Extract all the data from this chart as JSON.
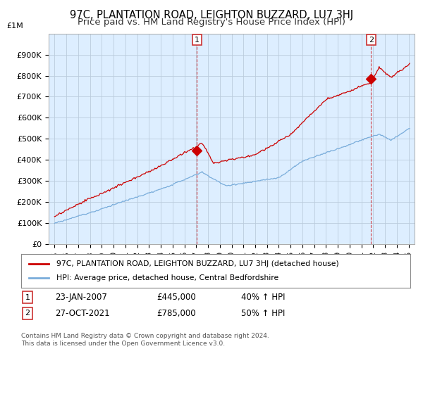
{
  "title": "97C, PLANTATION ROAD, LEIGHTON BUZZARD, LU7 3HJ",
  "subtitle": "Price paid vs. HM Land Registry's House Price Index (HPI)",
  "title_fontsize": 10.5,
  "subtitle_fontsize": 9.5,
  "red_label": "97C, PLANTATION ROAD, LEIGHTON BUZZARD, LU7 3HJ (detached house)",
  "blue_label": "HPI: Average price, detached house, Central Bedfordshire",
  "red_color": "#cc0000",
  "blue_color": "#7aaddb",
  "annotation1_label": "1",
  "annotation1_date": "23-JAN-2007",
  "annotation1_price": "£445,000",
  "annotation1_hpi": "40% ↑ HPI",
  "annotation1_year": 2007.07,
  "annotation1_value": 445000,
  "annotation2_label": "2",
  "annotation2_date": "27-OCT-2021",
  "annotation2_price": "£785,000",
  "annotation2_hpi": "50% ↑ HPI",
  "annotation2_year": 2021.82,
  "annotation2_value": 785000,
  "footer": "Contains HM Land Registry data © Crown copyright and database right 2024.\nThis data is licensed under the Open Government Licence v3.0.",
  "ylim": [
    0,
    1000000
  ],
  "yticks": [
    0,
    100000,
    200000,
    300000,
    400000,
    500000,
    600000,
    700000,
    800000,
    900000
  ],
  "ytick_labels": [
    "£0",
    "£100K",
    "£200K",
    "£300K",
    "£400K",
    "£500K",
    "£600K",
    "£700K",
    "£800K",
    "£900K"
  ],
  "top_label": "£1M",
  "xlim_start": 1994.5,
  "xlim_end": 2025.5,
  "bg_color": "#ffffff",
  "chart_bg_color": "#ddeeff",
  "grid_color": "#bbccdd"
}
